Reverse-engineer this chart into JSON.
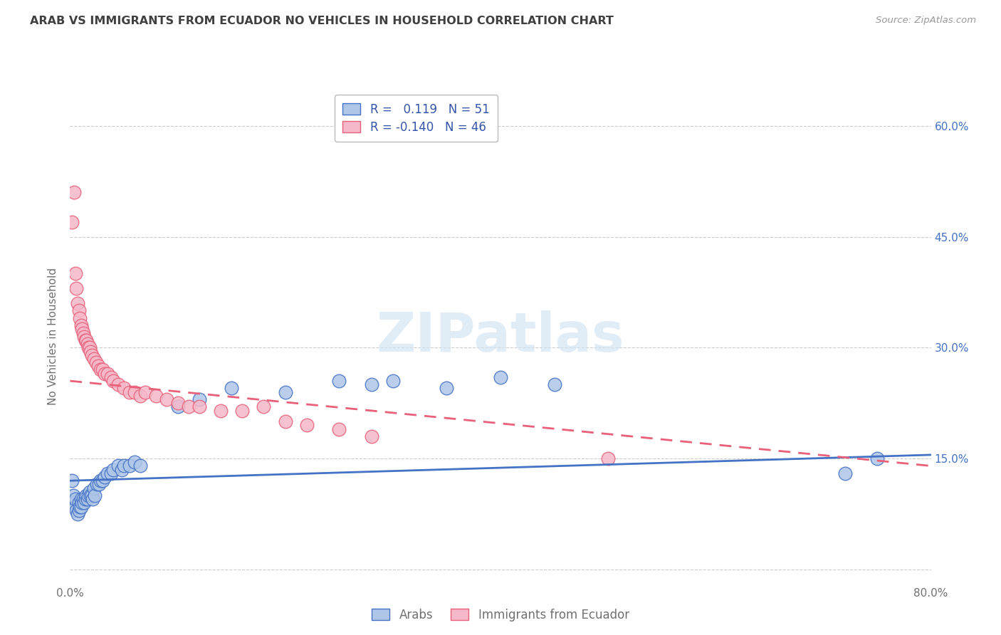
{
  "title": "ARAB VS IMMIGRANTS FROM ECUADOR NO VEHICLES IN HOUSEHOLD CORRELATION CHART",
  "source": "Source: ZipAtlas.com",
  "ylabel": "No Vehicles in Household",
  "xlim": [
    0.0,
    0.8
  ],
  "ylim": [
    -0.02,
    0.65
  ],
  "xticks": [
    0.0,
    0.1,
    0.2,
    0.3,
    0.4,
    0.5,
    0.6,
    0.7,
    0.8
  ],
  "xticklabels": [
    "0.0%",
    "",
    "",
    "",
    "",
    "",
    "",
    "",
    "80.0%"
  ],
  "yticks": [
    0.0,
    0.15,
    0.3,
    0.45,
    0.6
  ],
  "right_yticklabels": [
    "",
    "15.0%",
    "30.0%",
    "45.0%",
    "60.0%"
  ],
  "watermark": "ZIPatlas",
  "legend_R1": "0.119",
  "legend_N1": "51",
  "legend_R2": "-0.140",
  "legend_N2": "46",
  "arab_color": "#aec6e8",
  "ecuador_color": "#f5b8c8",
  "arab_line_color": "#4472c4",
  "ecuador_line_color": "#e8607a",
  "grid_color": "#cccccc",
  "title_color": "#404040",
  "axis_label_color": "#707070",
  "tick_color": "#4472c4",
  "arab_line": [
    0.0,
    0.12,
    0.8,
    0.155
  ],
  "ecuador_line": [
    0.0,
    0.255,
    0.8,
    0.14
  ],
  "arab_x": [
    0.002,
    0.003,
    0.004,
    0.005,
    0.005,
    0.006,
    0.007,
    0.008,
    0.008,
    0.009,
    0.01,
    0.01,
    0.011,
    0.012,
    0.013,
    0.014,
    0.015,
    0.016,
    0.017,
    0.018,
    0.019,
    0.02,
    0.021,
    0.022,
    0.023,
    0.025,
    0.027,
    0.028,
    0.03,
    0.032,
    0.035,
    0.038,
    0.04,
    0.045,
    0.048,
    0.05,
    0.055,
    0.06,
    0.065,
    0.1,
    0.12,
    0.15,
    0.2,
    0.25,
    0.28,
    0.3,
    0.35,
    0.4,
    0.45,
    0.72,
    0.75
  ],
  "arab_y": [
    0.12,
    0.1,
    0.09,
    0.085,
    0.095,
    0.08,
    0.075,
    0.08,
    0.09,
    0.085,
    0.085,
    0.095,
    0.09,
    0.095,
    0.09,
    0.095,
    0.1,
    0.095,
    0.1,
    0.105,
    0.1,
    0.1,
    0.095,
    0.11,
    0.1,
    0.115,
    0.115,
    0.12,
    0.12,
    0.125,
    0.13,
    0.13,
    0.135,
    0.14,
    0.135,
    0.14,
    0.14,
    0.145,
    0.14,
    0.22,
    0.23,
    0.245,
    0.24,
    0.255,
    0.25,
    0.255,
    0.245,
    0.26,
    0.25,
    0.13,
    0.15
  ],
  "ecuador_x": [
    0.002,
    0.004,
    0.005,
    0.006,
    0.007,
    0.008,
    0.009,
    0.01,
    0.011,
    0.012,
    0.013,
    0.014,
    0.015,
    0.016,
    0.017,
    0.018,
    0.019,
    0.02,
    0.022,
    0.024,
    0.026,
    0.028,
    0.03,
    0.032,
    0.035,
    0.038,
    0.04,
    0.045,
    0.05,
    0.055,
    0.06,
    0.065,
    0.07,
    0.08,
    0.09,
    0.1,
    0.11,
    0.12,
    0.14,
    0.16,
    0.18,
    0.2,
    0.22,
    0.25,
    0.28,
    0.5
  ],
  "ecuador_y": [
    0.47,
    0.51,
    0.4,
    0.38,
    0.36,
    0.35,
    0.34,
    0.33,
    0.325,
    0.32,
    0.315,
    0.31,
    0.31,
    0.305,
    0.3,
    0.3,
    0.295,
    0.29,
    0.285,
    0.28,
    0.275,
    0.27,
    0.27,
    0.265,
    0.265,
    0.26,
    0.255,
    0.25,
    0.245,
    0.24,
    0.24,
    0.235,
    0.24,
    0.235,
    0.23,
    0.225,
    0.22,
    0.22,
    0.215,
    0.215,
    0.22,
    0.2,
    0.195,
    0.19,
    0.18,
    0.15
  ]
}
